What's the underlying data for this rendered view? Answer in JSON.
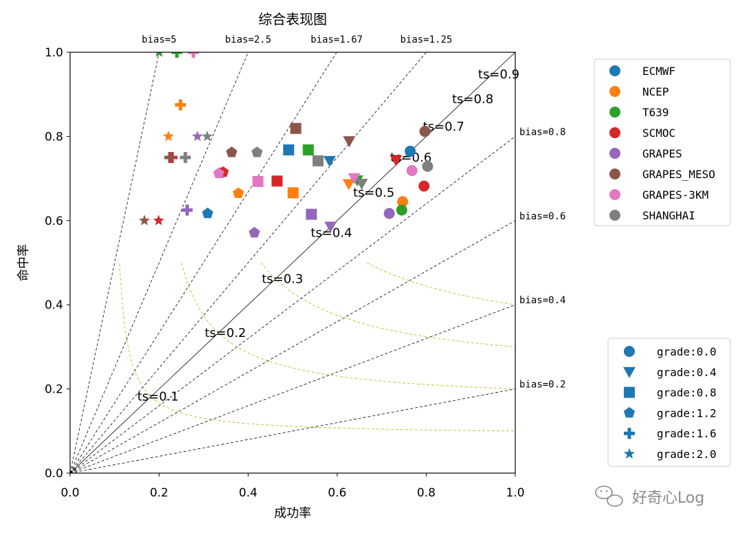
{
  "chart_data": {
    "type": "scatter",
    "title": "综合表现图",
    "xlabel": "成功率",
    "ylabel": "命中率",
    "xlim": [
      0,
      1
    ],
    "ylim": [
      0,
      1
    ],
    "xticks": [
      "0.0",
      "0.2",
      "0.4",
      "0.6",
      "0.8",
      "1.0"
    ],
    "yticks": [
      "0.0",
      "0.2",
      "0.4",
      "0.6",
      "0.8",
      "1.0"
    ],
    "grid": false,
    "colors": {
      "ECMWF": "#1f77b4",
      "NCEP": "#ff7f0e",
      "T639": "#2ca02c",
      "SCMOC": "#d62728",
      "GRAPES": "#9467bd",
      "GRAPES_MESO": "#8c564b",
      "GRAPES-3KM": "#e377c2",
      "SHANGHAI": "#7f7f7f"
    },
    "ts_lines": [
      {
        "value": 0.1,
        "label": "ts=0.1"
      },
      {
        "value": 0.2,
        "label": "ts=0.2"
      },
      {
        "value": 0.3,
        "label": "ts=0.3"
      },
      {
        "value": 0.4,
        "label": "ts=0.4"
      },
      {
        "value": 0.5,
        "label": "ts=0.5"
      },
      {
        "value": 0.6,
        "label": "ts=0.6"
      },
      {
        "value": 0.7,
        "label": "ts=0.7"
      },
      {
        "value": 0.8,
        "label": "ts=0.8"
      },
      {
        "value": 0.9,
        "label": "ts=0.9"
      }
    ],
    "bias_lines": [
      {
        "value": 5,
        "label": "bias=5",
        "position": "top"
      },
      {
        "value": 2.5,
        "label": "bias=2.5",
        "position": "top"
      },
      {
        "value": 1.67,
        "label": "bias=1.67",
        "position": "top"
      },
      {
        "value": 1.25,
        "label": "bias=1.25",
        "position": "top"
      },
      {
        "value": 1,
        "label": "",
        "position": "none"
      },
      {
        "value": 0.8,
        "label": "bias=0.8",
        "position": "right"
      },
      {
        "value": 0.6,
        "label": "bias=0.6",
        "position": "right"
      },
      {
        "value": 0.4,
        "label": "bias=0.4",
        "position": "right"
      },
      {
        "value": 0.2,
        "label": "bias=0.2",
        "position": "right"
      }
    ],
    "legend_models": {
      "placement": "upper right, outside",
      "entries": [
        "ECMWF",
        "NCEP",
        "T639",
        "SCMOC",
        "GRAPES",
        "GRAPES_MESO",
        "GRAPES-3KM",
        "SHANGHAI"
      ]
    },
    "legend_grades": {
      "placement": "lower right, outside",
      "entries": [
        {
          "label": "grade:0.0",
          "marker": "circle"
        },
        {
          "label": "grade:0.4",
          "marker": "triangle-down"
        },
        {
          "label": "grade:0.8",
          "marker": "square"
        },
        {
          "label": "grade:1.2",
          "marker": "pentagon"
        },
        {
          "label": "grade:1.6",
          "marker": "plus"
        },
        {
          "label": "grade:2.0",
          "marker": "star"
        }
      ]
    },
    "points": [
      {
        "model": "ECMWF",
        "grade": "0.0",
        "x": 0.764,
        "y": 0.765
      },
      {
        "model": "NCEP",
        "grade": "0.0",
        "x": 0.747,
        "y": 0.645
      },
      {
        "model": "T639",
        "grade": "0.0",
        "x": 0.745,
        "y": 0.625
      },
      {
        "model": "SCMOC",
        "grade": "0.0",
        "x": 0.795,
        "y": 0.682
      },
      {
        "model": "GRAPES",
        "grade": "0.0",
        "x": 0.717,
        "y": 0.617
      },
      {
        "model": "GRAPES_MESO",
        "grade": "0.0",
        "x": 0.797,
        "y": 0.812
      },
      {
        "model": "GRAPES-3KM",
        "grade": "0.0",
        "x": 0.768,
        "y": 0.719
      },
      {
        "model": "SHANGHAI",
        "grade": "0.0",
        "x": 0.803,
        "y": 0.729
      },
      {
        "model": "ECMWF",
        "grade": "0.4",
        "x": 0.583,
        "y": 0.742
      },
      {
        "model": "NCEP",
        "grade": "0.4",
        "x": 0.626,
        "y": 0.687
      },
      {
        "model": "T639",
        "grade": "0.4",
        "x": 0.645,
        "y": 0.696
      },
      {
        "model": "SCMOC",
        "grade": "0.4",
        "x": 0.732,
        "y": 0.744
      },
      {
        "model": "GRAPES",
        "grade": "0.4",
        "x": 0.585,
        "y": 0.586
      },
      {
        "model": "GRAPES_MESO",
        "grade": "0.4",
        "x": 0.627,
        "y": 0.789
      },
      {
        "model": "GRAPES-3KM",
        "grade": "0.4",
        "x": 0.638,
        "y": 0.701
      },
      {
        "model": "SHANGHAI",
        "grade": "0.4",
        "x": 0.655,
        "y": 0.688
      },
      {
        "model": "ECMWF",
        "grade": "0.8",
        "x": 0.491,
        "y": 0.768
      },
      {
        "model": "NCEP",
        "grade": "0.8",
        "x": 0.501,
        "y": 0.666
      },
      {
        "model": "T639",
        "grade": "0.8",
        "x": 0.535,
        "y": 0.768
      },
      {
        "model": "SCMOC",
        "grade": "0.8",
        "x": 0.465,
        "y": 0.694
      },
      {
        "model": "GRAPES",
        "grade": "0.8",
        "x": 0.542,
        "y": 0.615
      },
      {
        "model": "GRAPES_MESO",
        "grade": "0.8",
        "x": 0.507,
        "y": 0.819
      },
      {
        "model": "GRAPES-3KM",
        "grade": "0.8",
        "x": 0.422,
        "y": 0.693
      },
      {
        "model": "SHANGHAI",
        "grade": "0.8",
        "x": 0.557,
        "y": 0.742
      },
      {
        "model": "ECMWF",
        "grade": "1.2",
        "x": 0.309,
        "y": 0.617
      },
      {
        "model": "NCEP",
        "grade": "1.2",
        "x": 0.378,
        "y": 0.665
      },
      {
        "model": "T639",
        "grade": "1.2",
        "x": 0.337,
        "y": 0.713
      },
      {
        "model": "SCMOC",
        "grade": "1.2",
        "x": 0.344,
        "y": 0.715
      },
      {
        "model": "GRAPES",
        "grade": "1.2",
        "x": 0.414,
        "y": 0.571
      },
      {
        "model": "GRAPES_MESO",
        "grade": "1.2",
        "x": 0.363,
        "y": 0.762
      },
      {
        "model": "GRAPES-3KM",
        "grade": "1.2",
        "x": 0.334,
        "y": 0.712
      },
      {
        "model": "SHANGHAI",
        "grade": "1.2",
        "x": 0.42,
        "y": 0.762
      },
      {
        "model": "NCEP",
        "grade": "1.6",
        "x": 0.248,
        "y": 0.875
      },
      {
        "model": "SCMOC",
        "grade": "1.6",
        "x": 0.229,
        "y": 0.75
      },
      {
        "model": "GRAPES",
        "grade": "1.6",
        "x": 0.263,
        "y": 0.625
      },
      {
        "model": "GRAPES_MESO",
        "grade": "1.6",
        "x": 0.224,
        "y": 0.75
      },
      {
        "model": "SHANGHAI",
        "grade": "1.6",
        "x": 0.259,
        "y": 0.75
      },
      {
        "model": "T639",
        "grade": "1.6",
        "x": 0.24,
        "y": 1.0
      },
      {
        "model": "GRAPES-3KM",
        "grade": "1.6",
        "x": 0.277,
        "y": 1.0
      },
      {
        "model": "NCEP",
        "grade": "2.0",
        "x": 0.221,
        "y": 0.8
      },
      {
        "model": "SCMOC",
        "grade": "2.0",
        "x": 0.199,
        "y": 0.6
      },
      {
        "model": "GRAPES",
        "grade": "2.0",
        "x": 0.286,
        "y": 0.8
      },
      {
        "model": "GRAPES_MESO",
        "grade": "2.0",
        "x": 0.167,
        "y": 0.6
      },
      {
        "model": "SHANGHAI",
        "grade": "2.0",
        "x": 0.308,
        "y": 0.8
      },
      {
        "model": "T639",
        "grade": "2.0",
        "x": 0.2,
        "y": 1.0
      }
    ]
  },
  "watermark": {
    "icon": "wechat-icon",
    "text": "好奇心Log"
  }
}
